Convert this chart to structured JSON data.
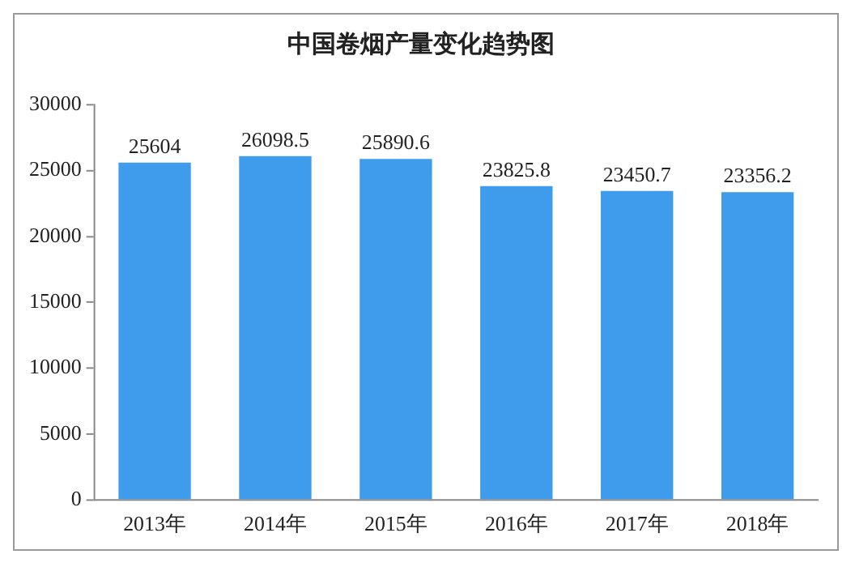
{
  "chart_data": {
    "type": "bar",
    "title": "中国卷烟产量变化趋势图",
    "categories": [
      "2013年",
      "2014年",
      "2015年",
      "2016年",
      "2017年",
      "2018年"
    ],
    "values": [
      25604,
      26098.5,
      25890.6,
      23825.8,
      23450.7,
      23356.2
    ],
    "color": "#3f9bec",
    "ylim": [
      0,
      30000
    ],
    "yticks": [
      0,
      5000,
      10000,
      15000,
      20000,
      25000,
      30000
    ],
    "grid": false,
    "data_labels": true
  }
}
